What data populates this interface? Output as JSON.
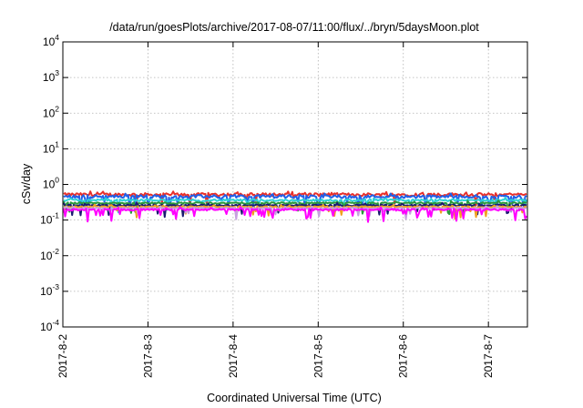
{
  "chart_data": {
    "type": "line",
    "title": "/data/run/goesPlots/archive/2017-08-07/11:00/flux/../bryn/5daysMoon.plot",
    "xlabel": "Coordinated Universal Time (UTC)",
    "ylabel": "cSv/day",
    "yscale": "log",
    "ylim": [
      0.0001,
      10000
    ],
    "yticks": [
      {
        "base": "10",
        "exp": "-4",
        "value": 0.0001
      },
      {
        "base": "10",
        "exp": "-3",
        "value": 0.001
      },
      {
        "base": "10",
        "exp": "-2",
        "value": 0.01
      },
      {
        "base": "10",
        "exp": "-1",
        "value": 0.1
      },
      {
        "base": "10",
        "exp": "0",
        "value": 1
      },
      {
        "base": "10",
        "exp": "1",
        "value": 10
      },
      {
        "base": "10",
        "exp": "2",
        "value": 100
      },
      {
        "base": "10",
        "exp": "3",
        "value": 1000
      },
      {
        "base": "10",
        "exp": "4",
        "value": 10000
      }
    ],
    "xlim": [
      "2017-08-02",
      "2017-08-07 11:00"
    ],
    "xticks": [
      {
        "label": "2017-8-2",
        "date": "2017-08-02"
      },
      {
        "label": "2017-8-3",
        "date": "2017-08-03"
      },
      {
        "label": "2017-8-4",
        "date": "2017-08-04"
      },
      {
        "label": "2017-8-5",
        "date": "2017-08-05"
      },
      {
        "label": "2017-8-6",
        "date": "2017-08-06"
      },
      {
        "label": "2017-8-7",
        "date": "2017-08-07"
      }
    ],
    "grid": true,
    "series": [
      {
        "color": "#e8302a",
        "base": 0.52,
        "noise": 0.1,
        "dips": 0.05
      },
      {
        "color": "#2060e8",
        "base": 0.46,
        "noise": 0.1,
        "dips": 0.1
      },
      {
        "color": "#2cd2d8",
        "base": 0.36,
        "noise": 0.06,
        "dips": 0.05
      },
      {
        "color": "#2a9a3a",
        "base": 0.3,
        "noise": 0.05,
        "dips": 0.05
      },
      {
        "color": "#1a1a70",
        "base": 0.26,
        "noise": 0.05,
        "dips": 0.05
      },
      {
        "color": "#f0a020",
        "base": 0.235,
        "noise": 0.04,
        "dips": 0.04
      },
      {
        "color": "#c8a0e0",
        "base": 0.215,
        "noise": 0.04,
        "dips": 0.04
      },
      {
        "color": "#ff00ff",
        "base": 0.195,
        "noise": 0.06,
        "dips": 0.15
      }
    ]
  }
}
